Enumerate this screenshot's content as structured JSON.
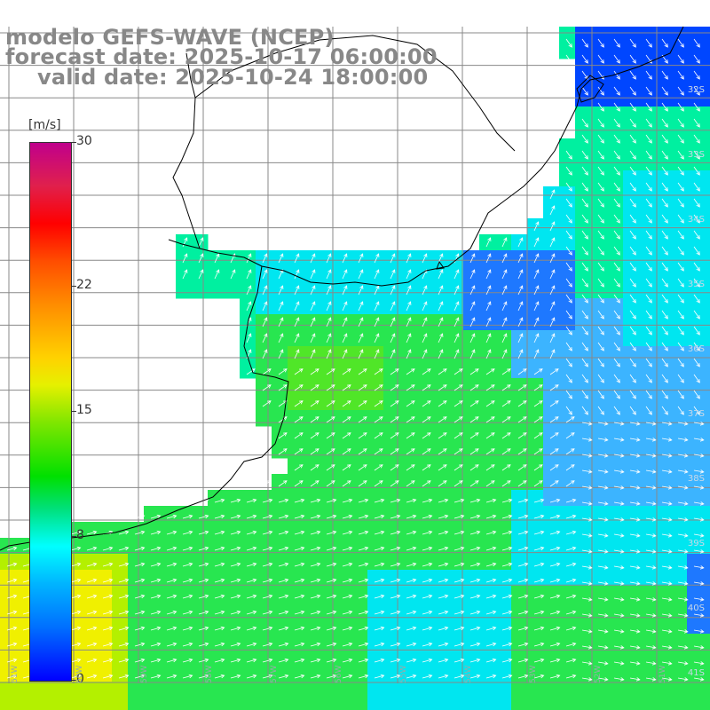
{
  "title": {
    "line1": "modelo GEFS-WAVE (NCEP)",
    "line2": "forecast date: 2025-10-17 06:00:00",
    "line3": "valid date: 2025-10-24 18:00:00"
  },
  "colorbar": {
    "unit": "[m/s]",
    "ticks": [
      "30",
      "22",
      "15",
      "8",
      "0"
    ],
    "tick_values": [
      30,
      22,
      15,
      8,
      0
    ],
    "range": [
      0,
      30
    ],
    "colors": [
      "#0000ff",
      "#0070ff",
      "#00b4ff",
      "#00ffff",
      "#00e07a",
      "#00e000",
      "#7fe600",
      "#e6f000",
      "#ffd200",
      "#ff8c00",
      "#ff4d00",
      "#ff0000",
      "#e0204c",
      "#c0008c"
    ]
  },
  "map": {
    "lat_labels": [
      "32S",
      "33S",
      "34S",
      "35S",
      "36S",
      "37S",
      "38S",
      "39S",
      "40S",
      "41S"
    ],
    "lon_labels": [
      "61W",
      "60W",
      "59W",
      "58W",
      "57W",
      "56W",
      "55W",
      "54W",
      "53W",
      "52W",
      "51W"
    ],
    "land_color": "#ffffff",
    "grid_color": "#888888",
    "arrow_color": "#ffffff",
    "field_colors": {
      "blue": "#1e78ff",
      "light_blue": "#3cb4ff",
      "cyan": "#00e6f0",
      "teal": "#00f0a0",
      "green": "#28e650",
      "light_green": "#50e628",
      "yellow_green": "#b4f000",
      "yellow": "#f0f000",
      "dark_blue": "#0046ff"
    }
  }
}
